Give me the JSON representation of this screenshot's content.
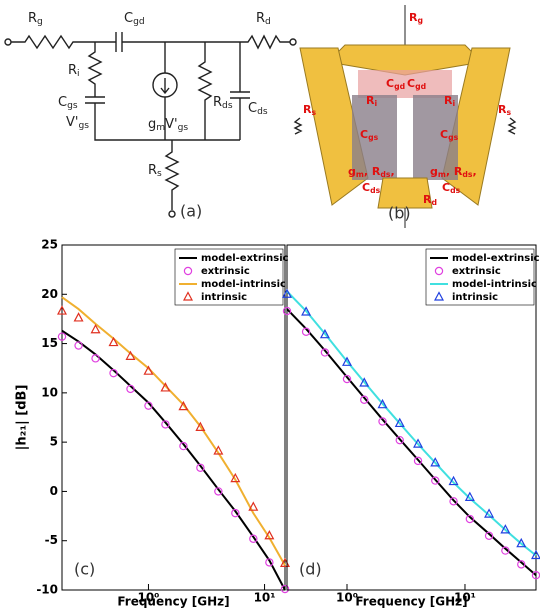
{
  "panel_a": {
    "label": "(a)",
    "labels": [
      [
        "R",
        "g"
      ],
      [
        "C",
        "gd"
      ],
      [
        "R",
        "d"
      ],
      [
        "R",
        "i"
      ],
      [
        "C",
        "gs"
      ],
      [
        "V'",
        "gs"
      ],
      [
        "g",
        "m",
        "V'",
        "gs"
      ],
      [
        "R",
        "ds"
      ],
      [
        "C",
        "ds"
      ],
      [
        "R",
        "s"
      ]
    ]
  },
  "panel_b": {
    "label": "(b)",
    "labels": [
      [
        "R",
        "g"
      ],
      [
        "C",
        "gd"
      ],
      [
        "C",
        "gd"
      ],
      [
        "R",
        "s"
      ],
      [
        "R",
        "s"
      ],
      [
        "R",
        "i"
      ],
      [
        "R",
        "i"
      ],
      [
        "C",
        "gs"
      ],
      [
        "C",
        "gs"
      ],
      [
        "g",
        "m",
        ", R",
        "ds",
        ","
      ],
      [
        "g",
        "m",
        ", R",
        "ds",
        ","
      ],
      [
        "C",
        "ds"
      ],
      [
        "C",
        "ds"
      ],
      [
        "R",
        "d"
      ]
    ]
  },
  "chart_data": [
    {
      "type": "line",
      "annotation": "(c)",
      "x_label": "Frequency [GHz]",
      "y_label": "|h₂₁| [dB]",
      "xscale": "log",
      "legend": "upper right",
      "xlim": [
        0.18,
        15
      ],
      "ylim": [
        -10,
        25
      ],
      "yticks": [
        -10,
        -5,
        0,
        5,
        10,
        15,
        20,
        25
      ],
      "xticks": [
        {
          "value": 1,
          "label": "10⁰"
        },
        {
          "value": 10,
          "label": "10¹"
        }
      ],
      "x": [
        0.18,
        0.25,
        0.35,
        0.5,
        0.7,
        1,
        1.4,
        2,
        2.8,
        4,
        5.6,
        8,
        11,
        15
      ],
      "series": [
        {
          "name": "model-extrinsic",
          "color": "#000000",
          "marker": "none",
          "values": [
            16.3,
            15.2,
            13.9,
            12.3,
            10.7,
            9.0,
            7.0,
            4.8,
            2.6,
            0.2,
            -2.0,
            -4.6,
            -7.0,
            -10
          ]
        },
        {
          "name": "extrinsic",
          "color": "#e040e0",
          "marker": "circle",
          "values": [
            15.7,
            14.8,
            13.5,
            12.0,
            10.4,
            8.7,
            6.8,
            4.6,
            2.4,
            0.0,
            -2.2,
            -4.8,
            -7.2,
            -9.9
          ]
        },
        {
          "name": "model-intrinsic",
          "color": "#f0b030",
          "marker": "none",
          "values": [
            19.7,
            18.5,
            17.0,
            15.5,
            14.0,
            12.5,
            10.7,
            8.8,
            6.6,
            3.9,
            1.2,
            -2.2,
            -4.7,
            -7.5
          ]
        },
        {
          "name": "intrinsic",
          "color": "#e03020",
          "marker": "triangle",
          "values": [
            18.3,
            17.6,
            16.4,
            15.1,
            13.7,
            12.2,
            10.5,
            8.6,
            6.5,
            4.1,
            1.3,
            -1.6,
            -4.5,
            -7.3
          ]
        }
      ]
    },
    {
      "type": "line",
      "annotation": "(d)",
      "x_label": "Frequency [GHz]",
      "xscale": "log",
      "legend": "upper right",
      "xlim": [
        0.31,
        40
      ],
      "ylim": [
        -10,
        25
      ],
      "xticks": [
        {
          "value": 1,
          "label": "10⁰"
        },
        {
          "value": 10,
          "label": "10¹"
        }
      ],
      "x": [
        0.31,
        0.45,
        0.65,
        1,
        1.4,
        2,
        2.8,
        4,
        5.6,
        8,
        11,
        16,
        22,
        30,
        40
      ],
      "series": [
        {
          "name": "model-extrinsic",
          "color": "#000000",
          "marker": "none",
          "values": [
            18.5,
            16.5,
            14.3,
            11.6,
            9.5,
            7.3,
            5.3,
            3.2,
            1.2,
            -0.9,
            -2.6,
            -4.3,
            -5.8,
            -7.2,
            -8.5
          ]
        },
        {
          "name": "extrinsic",
          "color": "#e040e0",
          "marker": "circle",
          "values": [
            18.3,
            16.2,
            14.1,
            11.4,
            9.3,
            7.1,
            5.2,
            3.1,
            1.1,
            -1.0,
            -2.8,
            -4.5,
            -6.0,
            -7.4,
            -8.5
          ]
        },
        {
          "name": "model-intrinsic",
          "color": "#40e0e0",
          "marker": "none",
          "values": [
            20.3,
            18.3,
            16.0,
            13.2,
            11.1,
            8.9,
            6.9,
            4.8,
            2.9,
            0.9,
            -0.7,
            -2.4,
            -3.9,
            -5.3,
            -6.5
          ]
        },
        {
          "name": "intrinsic",
          "color": "#2040e0",
          "marker": "triangle",
          "values": [
            20.0,
            18.2,
            15.9,
            13.1,
            11.0,
            8.8,
            6.9,
            4.8,
            2.9,
            1.0,
            -0.6,
            -2.3,
            -3.9,
            -5.3,
            -6.5
          ]
        }
      ]
    }
  ]
}
